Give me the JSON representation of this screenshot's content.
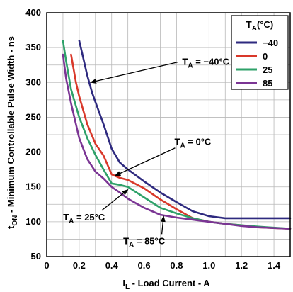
{
  "chart_data": {
    "type": "line",
    "xlabel": {
      "main": "I",
      "sub": "L",
      "rest": " - Load Current - A"
    },
    "ylabel": {
      "main": "t",
      "sub": "ON",
      "rest": " - Minimum Controllable Pulse Width - ns"
    },
    "xlim": [
      0,
      1.5
    ],
    "ylim": [
      50,
      400
    ],
    "xticks": [
      0,
      0.2,
      0.4,
      0.6,
      0.8,
      1.0,
      1.2,
      1.4
    ],
    "xtick_labels": [
      "0",
      "0.2",
      "0.4",
      "0.6",
      "0.8",
      "1.0",
      "1.2",
      "1.4"
    ],
    "yticks": [
      50,
      100,
      150,
      200,
      250,
      300,
      350,
      400
    ],
    "ytick_labels": [
      "50",
      "100",
      "150",
      "200",
      "250",
      "300",
      "350",
      "400"
    ],
    "grid": true,
    "legend_position": "top-right",
    "legend_title": {
      "main": "T",
      "sub": "A",
      "rest": "(°C)"
    },
    "series": [
      {
        "name": "−40",
        "color": "#2e2a7f",
        "points": [
          [
            0.2,
            360
          ],
          [
            0.22,
            340
          ],
          [
            0.25,
            310
          ],
          [
            0.28,
            285
          ],
          [
            0.3,
            272
          ],
          [
            0.35,
            240
          ],
          [
            0.4,
            205
          ],
          [
            0.45,
            185
          ],
          [
            0.5,
            175
          ],
          [
            0.6,
            158
          ],
          [
            0.7,
            142
          ],
          [
            0.8,
            128
          ],
          [
            0.9,
            115
          ],
          [
            1.0,
            108
          ],
          [
            1.1,
            105
          ],
          [
            1.2,
            105
          ],
          [
            1.3,
            105
          ],
          [
            1.5,
            105
          ]
        ]
      },
      {
        "name": "0",
        "color": "#d9382a",
        "points": [
          [
            0.15,
            340
          ],
          [
            0.18,
            300
          ],
          [
            0.2,
            280
          ],
          [
            0.25,
            240
          ],
          [
            0.3,
            212
          ],
          [
            0.35,
            195
          ],
          [
            0.4,
            168
          ],
          [
            0.45,
            163
          ],
          [
            0.5,
            160
          ],
          [
            0.6,
            148
          ],
          [
            0.7,
            132
          ],
          [
            0.8,
            118
          ],
          [
            0.9,
            105
          ],
          [
            1.0,
            100
          ],
          [
            1.1,
            97
          ],
          [
            1.2,
            95
          ],
          [
            1.3,
            92
          ],
          [
            1.5,
            90
          ]
        ]
      },
      {
        "name": "25",
        "color": "#2ea169",
        "points": [
          [
            0.1,
            360
          ],
          [
            0.12,
            330
          ],
          [
            0.15,
            290
          ],
          [
            0.2,
            250
          ],
          [
            0.25,
            220
          ],
          [
            0.3,
            196
          ],
          [
            0.35,
            175
          ],
          [
            0.4,
            155
          ],
          [
            0.45,
            153
          ],
          [
            0.5,
            150
          ],
          [
            0.6,
            135
          ],
          [
            0.7,
            120
          ],
          [
            0.8,
            112
          ],
          [
            0.9,
            105
          ],
          [
            1.0,
            100
          ],
          [
            1.1,
            97
          ],
          [
            1.2,
            95
          ],
          [
            1.3,
            93
          ],
          [
            1.5,
            90
          ]
        ]
      },
      {
        "name": "85",
        "color": "#7b3594",
        "points": [
          [
            0.1,
            340
          ],
          [
            0.12,
            305
          ],
          [
            0.15,
            270
          ],
          [
            0.2,
            220
          ],
          [
            0.25,
            190
          ],
          [
            0.3,
            172
          ],
          [
            0.35,
            162
          ],
          [
            0.4,
            150
          ],
          [
            0.45,
            142
          ],
          [
            0.5,
            133
          ],
          [
            0.6,
            120
          ],
          [
            0.7,
            110
          ],
          [
            0.8,
            106
          ],
          [
            0.9,
            103
          ],
          [
            1.0,
            100
          ],
          [
            1.1,
            97
          ],
          [
            1.2,
            94
          ],
          [
            1.3,
            92
          ],
          [
            1.5,
            90
          ]
        ]
      }
    ],
    "annotations": [
      {
        "main": "T",
        "sub": "A",
        "rest": " = −40°C",
        "text_at": [
          0.98,
          325
        ],
        "arrow_to": [
          0.27,
          300
        ]
      },
      {
        "main": "T",
        "sub": "A",
        "rest": " = 0°C",
        "text_at": [
          0.9,
          210
        ],
        "arrow_to": [
          0.42,
          166
        ]
      },
      {
        "main": "T",
        "sub": "A",
        "rest": " = 25°C",
        "text_at": [
          0.23,
          102
        ],
        "arrow_to": [
          0.5,
          146
        ]
      },
      {
        "main": "T",
        "sub": "A",
        "rest": " = 85°C",
        "text_at": [
          0.6,
          68
        ],
        "arrow_to": [
          0.72,
          108
        ]
      }
    ]
  }
}
